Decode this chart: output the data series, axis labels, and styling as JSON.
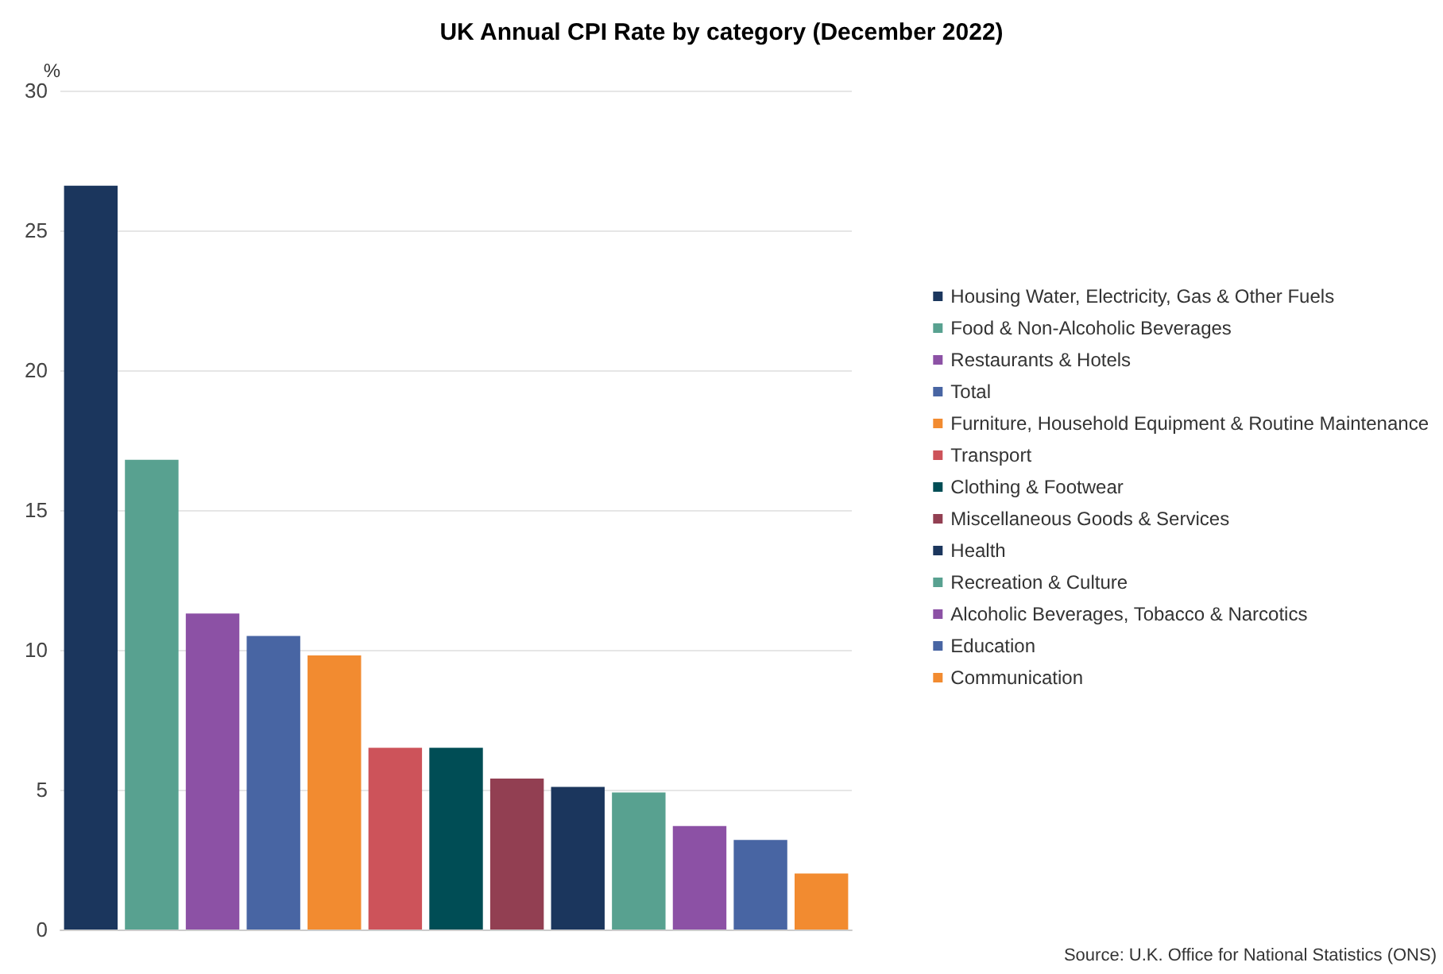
{
  "chart_data": {
    "type": "bar",
    "title": "UK Annual CPI Rate by category (December 2022)",
    "ylabel": "%",
    "categories": [
      null,
      null,
      null,
      null,
      null,
      null,
      null,
      null,
      null,
      null,
      null,
      null,
      null
    ],
    "series": [
      {
        "name": "Housing Water, Electricity, Gas & Other Fuels",
        "color": "#1b365d",
        "values": [
          26.6,
          null,
          null,
          null,
          null,
          null,
          null,
          null,
          null,
          null,
          null,
          null,
          null
        ]
      },
      {
        "name": "Food & Non-Alcoholic Beverages",
        "color": "#58a190",
        "values": [
          null,
          16.8,
          null,
          null,
          null,
          null,
          null,
          null,
          null,
          null,
          null,
          null,
          null
        ]
      },
      {
        "name": "Restaurants & Hotels",
        "color": "#8c51a5",
        "values": [
          null,
          null,
          11.3,
          null,
          null,
          null,
          null,
          null,
          null,
          null,
          null,
          null,
          null
        ]
      },
      {
        "name": "Total",
        "color": "#4865a3",
        "values": [
          null,
          null,
          null,
          10.5,
          null,
          null,
          null,
          null,
          null,
          null,
          null,
          null,
          null
        ]
      },
      {
        "name": "Furniture, Household Equipment & Routine Maintenance",
        "color": "#f28b30",
        "values": [
          null,
          null,
          null,
          null,
          9.8,
          null,
          null,
          null,
          null,
          null,
          null,
          null,
          null
        ]
      },
      {
        "name": "Transport",
        "color": "#cd535a",
        "values": [
          null,
          null,
          null,
          null,
          null,
          6.5,
          null,
          null,
          null,
          null,
          null,
          null,
          null
        ]
      },
      {
        "name": "Clothing & Footwear",
        "color": "#004d55",
        "values": [
          null,
          null,
          null,
          null,
          null,
          null,
          6.5,
          null,
          null,
          null,
          null,
          null,
          null
        ]
      },
      {
        "name": "Miscellaneous Goods & Services",
        "color": "#923f52",
        "values": [
          null,
          null,
          null,
          null,
          null,
          null,
          null,
          5.4,
          null,
          null,
          null,
          null,
          null
        ]
      },
      {
        "name": "Health",
        "color": "#1b365d",
        "values": [
          null,
          null,
          null,
          null,
          null,
          null,
          null,
          null,
          5.1,
          null,
          null,
          null,
          null
        ]
      },
      {
        "name": "Recreation & Culture",
        "color": "#58a190",
        "values": [
          null,
          null,
          null,
          null,
          null,
          null,
          null,
          null,
          null,
          4.9,
          null,
          null,
          null
        ]
      },
      {
        "name": "Alcoholic Beverages, Tobacco & Narcotics",
        "color": "#8c51a5",
        "values": [
          null,
          null,
          null,
          null,
          null,
          null,
          null,
          null,
          null,
          null,
          3.7,
          null,
          null
        ]
      },
      {
        "name": "Education",
        "color": "#4865a3",
        "values": [
          null,
          null,
          null,
          null,
          null,
          null,
          null,
          null,
          null,
          null,
          null,
          3.2,
          null
        ]
      },
      {
        "name": "Communication",
        "color": "#f28b30",
        "values": [
          null,
          null,
          null,
          null,
          null,
          null,
          null,
          null,
          null,
          null,
          null,
          null,
          2.0
        ]
      }
    ],
    "ylim": [
      0,
      30
    ],
    "yticks": [
      0,
      5,
      10,
      15,
      20,
      25,
      30
    ],
    "grid": "y",
    "legend": "right",
    "tick_labels": "y",
    "annotations": [
      "Source: U.K. Office for National Statistics (ONS)"
    ]
  }
}
